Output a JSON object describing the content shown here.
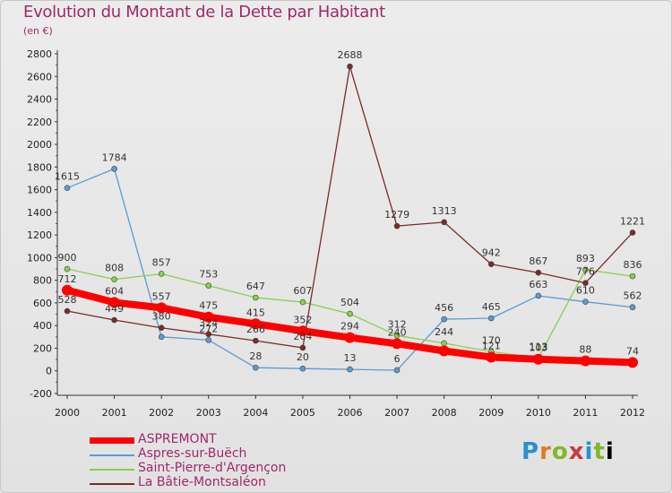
{
  "title": "Evolution du Montant de la Dette par Habitant",
  "subtitle": "(en €)",
  "logo": [
    "P",
    "r",
    "o",
    "x",
    "i",
    "t",
    "i"
  ],
  "chart_data": {
    "type": "line",
    "x": [
      "2000",
      "2001",
      "2002",
      "2003",
      "2004",
      "2005",
      "2006",
      "2007",
      "2008",
      "2009",
      "2010",
      "2011",
      "2012"
    ],
    "ylim": [
      -200,
      2800
    ],
    "yticks": [
      "-200",
      "0",
      "200",
      "400",
      "600",
      "800",
      "1000",
      "1200",
      "1400",
      "1600",
      "1800",
      "2000",
      "2200",
      "2400",
      "2600",
      "2800"
    ],
    "grid": false,
    "legend_position": "bottom",
    "series": [
      {
        "name": "ASPREMONT",
        "color": "#ff0000",
        "values": [
          712,
          604,
          557,
          475,
          415,
          352,
          294,
          240,
          176,
          121,
          103,
          88,
          74
        ],
        "labels": [
          "712",
          "604",
          "557",
          "475",
          "415",
          "352",
          "294",
          "240",
          "",
          "121",
          "103",
          "88",
          "74"
        ]
      },
      {
        "name": "Aspres-sur-Buëch",
        "color": "#5b9bd5",
        "values": [
          1615,
          1784,
          300,
          272,
          28,
          20,
          13,
          6,
          456,
          465,
          663,
          610,
          562
        ],
        "labels": [
          "1615",
          "1784",
          "",
          "272",
          "28",
          "20",
          "13",
          "6",
          "456",
          "465",
          "663",
          "610",
          "562"
        ]
      },
      {
        "name": "Saint-Pierre-d'Argençon",
        "color": "#88d04b",
        "values": [
          900,
          808,
          857,
          753,
          647,
          607,
          504,
          312,
          244,
          170,
          113,
          893,
          836
        ],
        "labels": [
          "900",
          "808",
          "857",
          "753",
          "647",
          "607",
          "504",
          "312",
          "244",
          "170",
          "113",
          "893",
          "836"
        ]
      },
      {
        "name": "La Bâtie-Montsaléon",
        "color": "#7b2a2a",
        "values": [
          528,
          449,
          380,
          324,
          266,
          204,
          2688,
          1279,
          1313,
          942,
          867,
          776,
          1221
        ],
        "labels": [
          "528",
          "449",
          "380",
          "324",
          "266",
          "204",
          "2688",
          "1279",
          "1313",
          "942",
          "867",
          "776",
          "1221"
        ]
      }
    ]
  }
}
